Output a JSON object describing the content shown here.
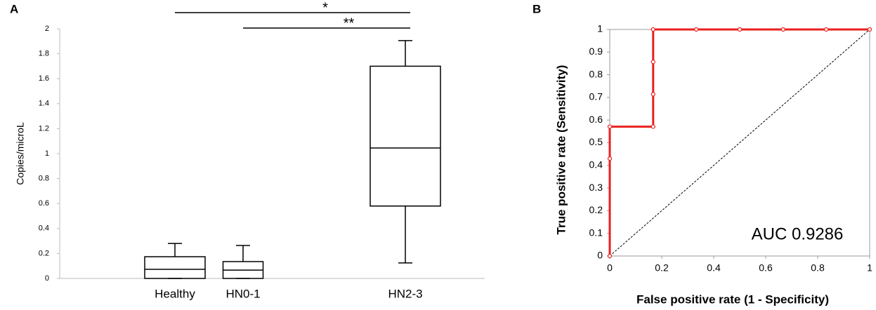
{
  "chart_data": [
    {
      "type": "box",
      "panel": "A",
      "y_label": "Copies/microL",
      "categories": [
        "Healthy",
        "HN0-1",
        "HN2-3"
      ],
      "min": [
        0,
        0,
        0.124
      ],
      "q1": [
        0,
        0,
        0.58
      ],
      "median": [
        0.073,
        0.067,
        1.045
      ],
      "q3": [
        0.174,
        0.135,
        1.7
      ],
      "max": [
        0.28,
        0.264,
        1.905
      ],
      "color": "#000000",
      "ylim": [
        0,
        2
      ],
      "yticks": [
        0,
        0.2,
        0.4,
        0.6,
        0.8,
        1,
        1.2,
        1.4,
        1.6,
        1.8,
        2
      ],
      "annotations": [
        "*",
        "**"
      ]
    },
    {
      "type": "line",
      "panel": "B",
      "x_label": "False positive rate (1 - Specificity)",
      "y_label": "True positive rate (Sensitivity)",
      "x": [
        0,
        0,
        0,
        0.167,
        0.167,
        0.167,
        0.167,
        0.333,
        0.5,
        0.667,
        0.833,
        1
      ],
      "values": [
        0,
        0.43,
        0.571,
        0.571,
        0.714,
        0.857,
        1,
        1,
        1,
        1,
        1,
        1
      ],
      "color": "#e8211f",
      "xlim": [
        0,
        1
      ],
      "xticks": [
        0,
        0.2,
        0.4,
        0.6,
        0.8,
        1
      ],
      "ylim": [
        0,
        1
      ],
      "yticks": [
        0,
        0.1,
        0.2,
        0.3,
        0.4,
        0.5,
        0.6,
        0.7,
        0.8,
        0.9,
        1
      ],
      "annotation": "AUC 0.9286"
    }
  ]
}
